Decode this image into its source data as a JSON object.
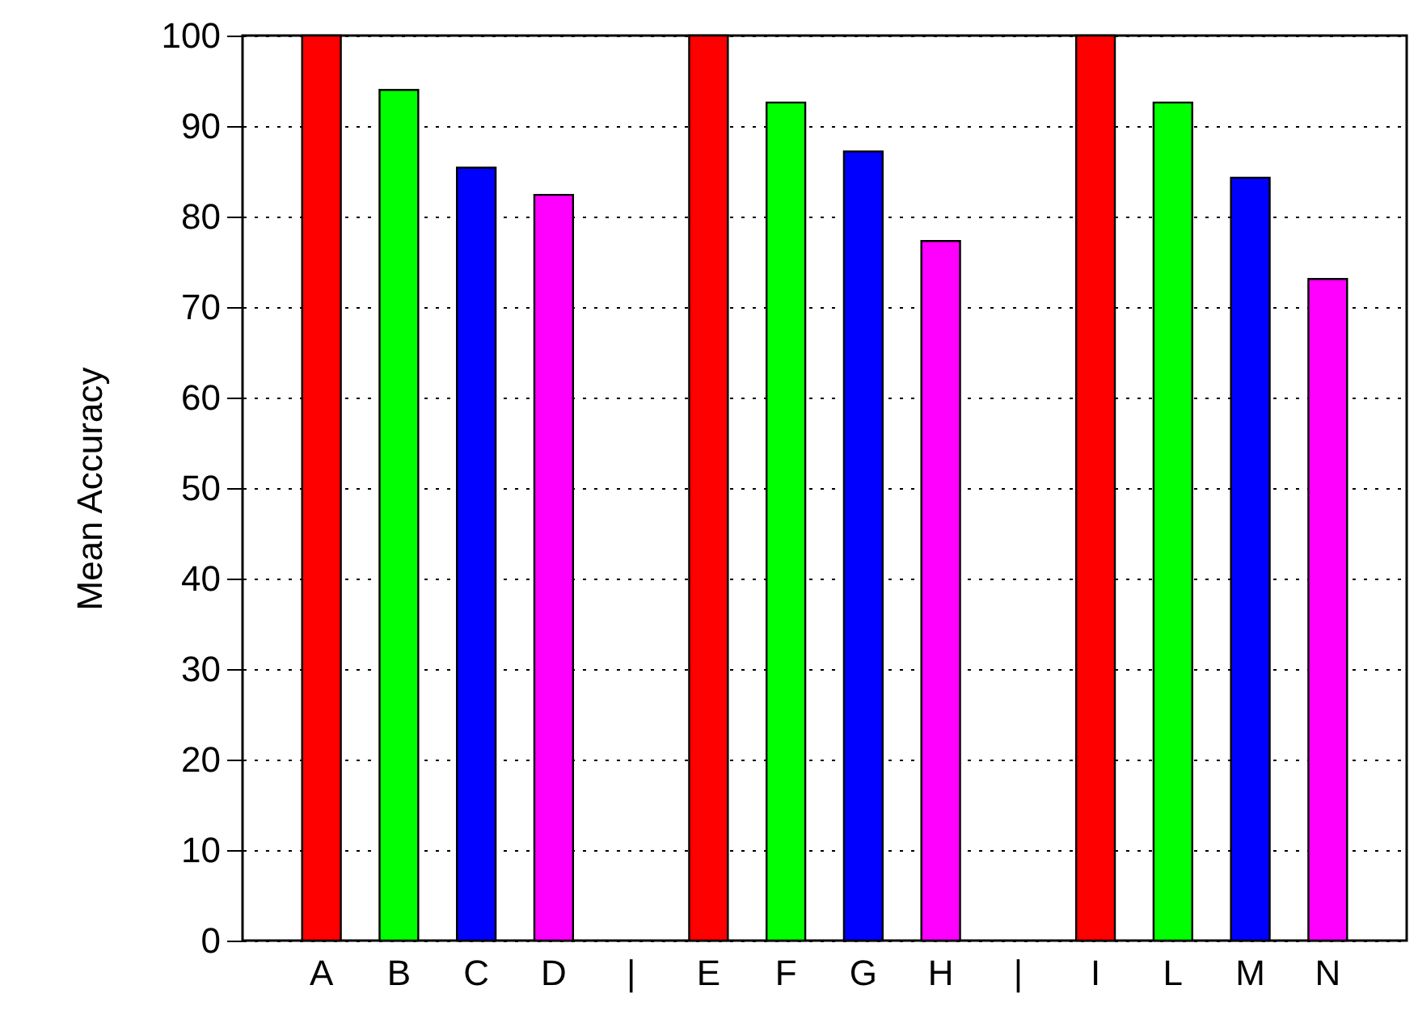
{
  "chart_data": {
    "type": "bar",
    "ylabel": "Mean Accuracy",
    "categories": [
      "A",
      "B",
      "C",
      "D",
      "|",
      "E",
      "F",
      "G",
      "H",
      "|",
      "I",
      "L",
      "M",
      "N"
    ],
    "values": [
      100,
      94.0,
      85.4,
      82.4,
      null,
      100,
      92.6,
      87.2,
      77.3,
      null,
      100,
      92.6,
      84.3,
      73.1
    ],
    "colors": [
      "#ff0000",
      "#00ff00",
      "#0000ff",
      "#ff00ff",
      null,
      "#ff0000",
      "#00ff00",
      "#0000ff",
      "#ff00ff",
      null,
      "#ff0000",
      "#00ff00",
      "#0000ff",
      "#ff00ff"
    ],
    "ylim": [
      0,
      100
    ],
    "yticks": [
      0,
      10,
      20,
      30,
      40,
      50,
      60,
      70,
      80,
      90,
      100
    ],
    "grid": "y"
  }
}
